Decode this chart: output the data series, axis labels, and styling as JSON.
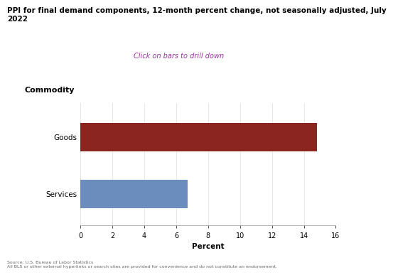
{
  "title": "PPI for final demand components, 12-month percent change, not seasonally adjusted, July\n2022",
  "subtitle": "Click on bars to drill down",
  "subtitle_color": "#9B30A0",
  "ylabel_text": "Commodity",
  "xlabel_text": "Percent",
  "categories": [
    "Goods",
    "Services"
  ],
  "values": [
    14.8,
    6.7
  ],
  "bar_colors": [
    "#8B2520",
    "#6B8DBE"
  ],
  "xlim": [
    0,
    16
  ],
  "xticks": [
    0,
    2,
    4,
    6,
    8,
    10,
    12,
    14,
    16
  ],
  "background_color": "#ffffff",
  "title_fontsize": 7.5,
  "subtitle_fontsize": 7,
  "axis_label_fontsize": 7.5,
  "tick_fontsize": 7,
  "ylabel_label_fontsize": 8,
  "footer_line1": "Source: U.S. Bureau of Labor Statistics",
  "footer_line2": "All BLS or other external hyperlinks or search sites are provided for convenience and do not constitute an endorsement.",
  "bar_height": 0.5
}
